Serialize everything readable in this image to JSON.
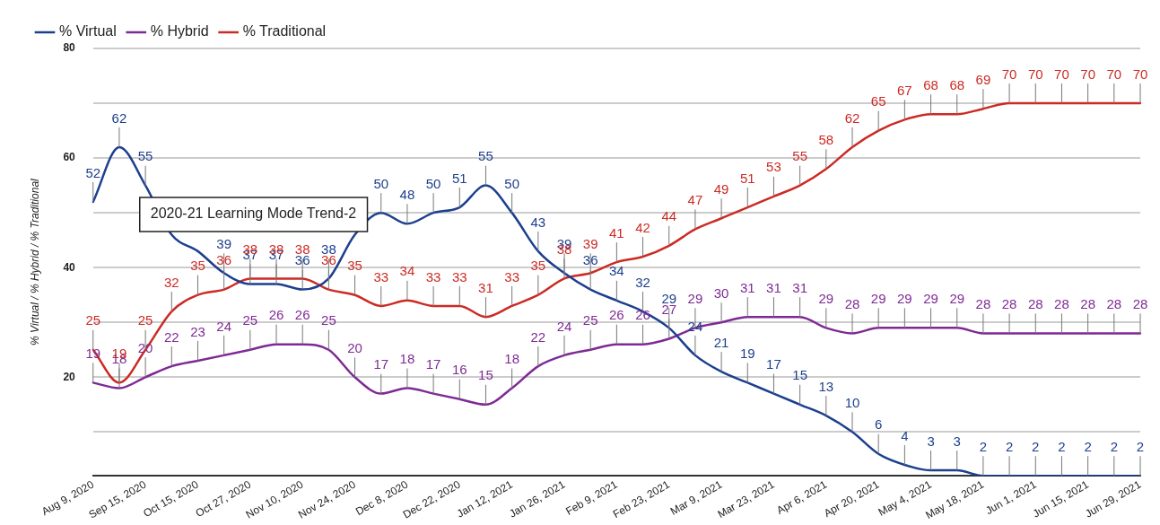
{
  "chart_data": {
    "type": "line",
    "categories": [
      "Aug 9, 2020",
      null,
      "Sep 15, 2020",
      null,
      "Oct 15, 2020",
      null,
      "Oct 27, 2020",
      null,
      "Nov 10, 2020",
      null,
      "Nov 24, 2020",
      null,
      "Dec 8, 2020",
      null,
      "Dec 22, 2020",
      null,
      "Jan 12, 2021",
      null,
      "Jan 26, 2021",
      null,
      "Feb 9, 2021",
      null,
      "Feb 23, 2021",
      null,
      "Mar 9, 2021",
      null,
      "Mar 23, 2021",
      null,
      "Apr 6, 2021",
      null,
      "Apr 20, 2021",
      null,
      "May 4, 2021",
      null,
      "May 18, 2021",
      null,
      "Jun 1, 2021",
      null,
      "Jun 15, 2021",
      null,
      "Jun 29, 2021"
    ],
    "series": [
      {
        "name": "% Virtual",
        "color": "#1c3f8e",
        "values": [
          52,
          62,
          55,
          46,
          43,
          39,
          37,
          37,
          36,
          38,
          46,
          50,
          48,
          50,
          51,
          55,
          50,
          43,
          39,
          36,
          34,
          32,
          29,
          24,
          21,
          19,
          17,
          15,
          13,
          10,
          6,
          4,
          3,
          3,
          2,
          2,
          2,
          2,
          2,
          2,
          2
        ],
        "value_labels": [
          "52",
          "62",
          "55",
          null,
          null,
          "39",
          "37",
          "37",
          "36",
          "38",
          null,
          "50",
          "48",
          "50",
          "51",
          "55",
          "50",
          "43",
          "39",
          "36",
          "34",
          "32",
          "29",
          "24",
          "21",
          "19",
          "17",
          "15",
          "13",
          "10",
          "6",
          "4",
          "3",
          "3",
          "2",
          "2",
          "2",
          "2",
          "2",
          "2",
          "2"
        ]
      },
      {
        "name": "% Hybrid",
        "color": "#7e2a94",
        "values": [
          19,
          18,
          20,
          22,
          23,
          24,
          25,
          26,
          26,
          25,
          20,
          17,
          18,
          17,
          16,
          15,
          18,
          22,
          24,
          25,
          26,
          26,
          27,
          29,
          30,
          31,
          31,
          31,
          29,
          28,
          29,
          29,
          29,
          29,
          28,
          28,
          28,
          28,
          28,
          28,
          28
        ],
        "value_labels": [
          "19",
          "18",
          "20",
          "22",
          "23",
          "24",
          "25",
          "26",
          "26",
          "25",
          "20",
          "17",
          "18",
          "17",
          "16",
          "15",
          "18",
          "22",
          "24",
          "25",
          "26",
          "26",
          "27",
          "29",
          "30",
          "31",
          "31",
          "31",
          "29",
          "28",
          "29",
          "29",
          "29",
          "29",
          "28",
          "28",
          "28",
          "28",
          "28",
          "28",
          "28"
        ]
      },
      {
        "name": "% Traditional",
        "color": "#cc2a24",
        "values": [
          25,
          19,
          25,
          32,
          35,
          36,
          38,
          38,
          38,
          36,
          35,
          33,
          34,
          33,
          33,
          31,
          33,
          35,
          38,
          39,
          41,
          42,
          44,
          47,
          49,
          51,
          53,
          55,
          58,
          62,
          65,
          67,
          68,
          68,
          69,
          70,
          70,
          70,
          70,
          70,
          70
        ],
        "value_labels": [
          "25",
          "19",
          "25",
          "32",
          "35",
          "36",
          "38",
          "38",
          "38",
          "36",
          "35",
          "33",
          "34",
          "33",
          "33",
          "31",
          "33",
          "35",
          "38",
          "39",
          "41",
          "42",
          "44",
          "47",
          "49",
          "51",
          "53",
          "55",
          "58",
          "62",
          "65",
          "67",
          "68",
          "68",
          "69",
          "70",
          "70",
          "70",
          "70",
          "70",
          "70"
        ]
      }
    ],
    "ylabel": "% Virtual / % Hybrid / % Traditional",
    "ylim": [
      2,
      80
    ],
    "yticks": [
      {
        "value": 10,
        "label": null
      },
      20,
      {
        "value": 30,
        "label": null
      },
      40,
      {
        "value": 50,
        "label": null
      },
      60,
      {
        "value": 70,
        "label": null
      },
      80
    ],
    "grid": "y",
    "legend": "top left",
    "marker": "none",
    "line_style": "solid",
    "annotations": [
      "2020-21 Learning Mode Trend-2"
    ]
  }
}
